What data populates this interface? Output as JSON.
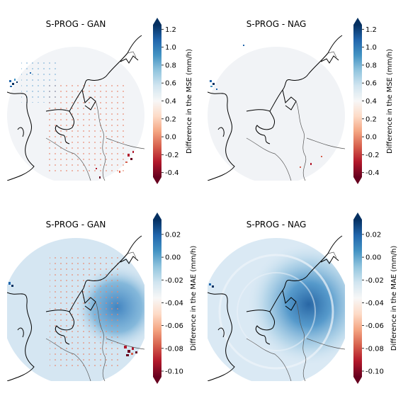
{
  "panels": [
    {
      "title": "S-PROG - GAN",
      "metric": "MSE",
      "colorbar": {
        "label": "Difference in the MSE (mm/h)",
        "ticks": [
          "1.2",
          "1.0",
          "0.8",
          "0.6",
          "0.4",
          "0.2",
          "0.0",
          "-0.2",
          "-0.4"
        ],
        "tick_values": [
          1.2,
          1.0,
          0.8,
          0.6,
          0.4,
          0.2,
          0.0,
          -0.2,
          -0.4
        ],
        "range": [
          -0.45,
          1.25
        ],
        "extend": "both"
      },
      "pattern": "mse_gan"
    },
    {
      "title": "S-PROG - NAG",
      "metric": "MSE",
      "colorbar": {
        "label": "Difference in the MSE (mm/h)",
        "ticks": [
          "1.2",
          "1.0",
          "0.8",
          "0.6",
          "0.4",
          "0.2",
          "0.0",
          "-0.2",
          "-0.4"
        ],
        "tick_values": [
          1.2,
          1.0,
          0.8,
          0.6,
          0.4,
          0.2,
          0.0,
          -0.2,
          -0.4
        ],
        "range": [
          -0.45,
          1.25
        ],
        "extend": "both"
      },
      "pattern": "mse_nag"
    },
    {
      "title": "S-PROG - GAN",
      "metric": "MAE",
      "colorbar": {
        "label": "Difference in the MAE (mm/h)",
        "ticks": [
          "0.02",
          "0.00",
          "-0.02",
          "-0.04",
          "-0.06",
          "-0.08",
          "-0.10"
        ],
        "tick_values": [
          0.02,
          0.0,
          -0.02,
          -0.04,
          -0.06,
          -0.08,
          -0.1
        ],
        "range": [
          -0.105,
          0.033
        ],
        "extend": "both"
      },
      "pattern": "mae_gan"
    },
    {
      "title": "S-PROG - NAG",
      "metric": "MAE",
      "colorbar": {
        "label": "Difference in the MAE (mm/h)",
        "ticks": [
          "0.02",
          "0.00",
          "-0.02",
          "-0.04",
          "-0.06",
          "-0.08",
          "-0.10"
        ],
        "tick_values": [
          0.02,
          0.0,
          -0.02,
          -0.04,
          -0.06,
          -0.08,
          -0.1
        ],
        "range": [
          -0.105,
          0.033
        ],
        "extend": "both"
      },
      "pattern": "mae_nag"
    }
  ],
  "colors": {
    "dark_red": "#67001f",
    "red": "#d6604d",
    "white": "#f7f7f7",
    "blue": "#4393c3",
    "dark_blue": "#053061"
  }
}
